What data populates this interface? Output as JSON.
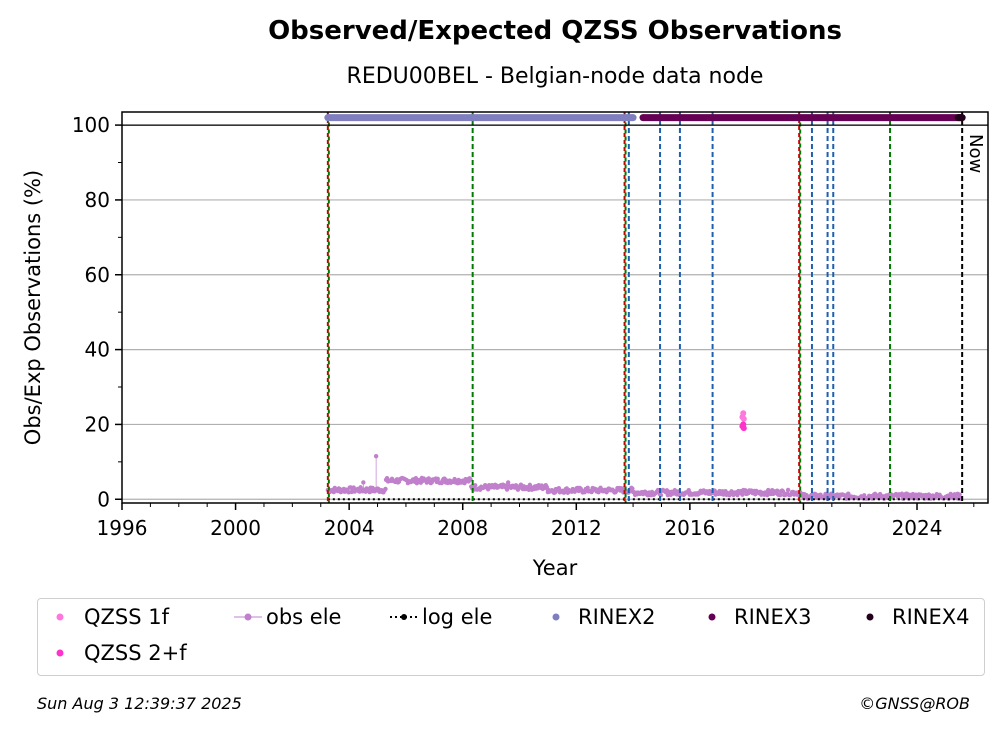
{
  "chart_data": {
    "type": "scatter",
    "title": "Observed/Expected QZSS Observations",
    "subtitle": "REDU00BEL - Belgian-node data node",
    "xlabel": "Year",
    "ylabel": "Obs/Exp Observations (%)",
    "xlim": [
      1996,
      2026.5
    ],
    "ylim": [
      -1,
      103.5
    ],
    "xticks": [
      1996,
      2000,
      2004,
      2008,
      2012,
      2016,
      2020,
      2024
    ],
    "yticks": [
      0,
      20,
      40,
      60,
      80,
      100
    ],
    "grid": "horizontal",
    "now_label": "Now",
    "now_x": 2025.59,
    "vlines_red_green": [
      2003.25,
      2013.7,
      2019.85
    ],
    "vlines_green": [
      2008.35,
      2023.05
    ],
    "vlines_blue": [
      2013.85,
      2014.95,
      2015.65,
      2016.8,
      2020.3,
      2020.85,
      2021.05
    ],
    "rinex_tracks": [
      {
        "name": "RINEX2",
        "y": 102,
        "x_start": 2003.25,
        "x_end": 2014.0,
        "color": "#7f7fbf"
      },
      {
        "name": "RINEX3",
        "y": 102,
        "x_start": 2014.35,
        "x_end": 2025.55,
        "color": "#660055"
      },
      {
        "name": "RINEX4",
        "y": 102,
        "x_start": 2025.45,
        "x_end": 2025.59,
        "color": "#22001a"
      }
    ],
    "series": [
      {
        "name": "QZSS 1f",
        "color": "#ff77dd",
        "x": [
          2017.85,
          2017.88,
          2017.9
        ],
        "y": [
          22,
          23,
          21.5
        ]
      },
      {
        "name": "QZSS 2+f",
        "color": "#ff33cc",
        "x": [
          2017.85,
          2017.88,
          2017.9
        ],
        "y": [
          19.5,
          20,
          19
        ]
      },
      {
        "name": "obs ele",
        "color": "#c080cc",
        "segments": [
          {
            "x_start": 2003.25,
            "x_end": 2005.3,
            "y": 2.5
          },
          {
            "x_start": 2005.3,
            "x_end": 2008.3,
            "y": 5
          },
          {
            "x_start": 2008.3,
            "x_end": 2011.0,
            "y": 3.2
          },
          {
            "x_start": 2011.0,
            "x_end": 2014.0,
            "y": 2.4
          },
          {
            "x_start": 2014.0,
            "x_end": 2019.9,
            "y": 1.8
          },
          {
            "x_start": 2019.9,
            "x_end": 2025.55,
            "y": 0.8
          }
        ],
        "outliers": [
          {
            "x": 2004.95,
            "y": 11.5
          },
          {
            "x": 2004.5,
            "y": 4.5
          },
          {
            "x": 2009.6,
            "y": 4.5
          }
        ]
      },
      {
        "name": "log ele",
        "color": "#000000",
        "x_start": 2003.25,
        "x_end": 2025.59,
        "y": 0
      }
    ],
    "legend": {
      "placement": "bottom",
      "entries": [
        {
          "label": "QZSS 1f",
          "color": "#ff77dd",
          "marker": "dot"
        },
        {
          "label": "obs ele",
          "color": "#c080cc",
          "marker": "line-dot"
        },
        {
          "label": "log ele",
          "color": "#000000",
          "marker": "dotted-dot"
        },
        {
          "label": "RINEX2",
          "color": "#7f7fbf",
          "marker": "dot"
        },
        {
          "label": "RINEX3",
          "color": "#660055",
          "marker": "dot"
        },
        {
          "label": "RINEX4",
          "color": "#22001a",
          "marker": "dot"
        },
        {
          "label": "QZSS 2+f",
          "color": "#ff33cc",
          "marker": "dot"
        }
      ]
    }
  },
  "footer": {
    "timestamp": "Sun Aug  3 12:39:37 2025",
    "credit": "©GNSS@ROB"
  }
}
